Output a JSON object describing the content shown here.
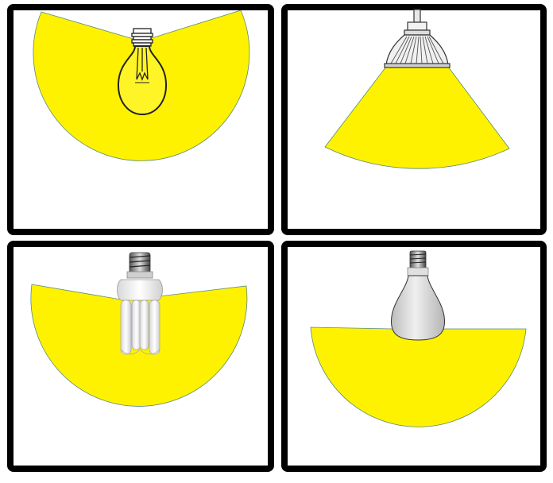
{
  "panels": [
    {
      "lamp": "incandescent-bulb-icon",
      "beam": "wide-beam"
    },
    {
      "lamp": "reflector-spotlight-icon",
      "beam": "narrow-beam"
    },
    {
      "lamp": "compact-fluorescent-bulb-icon",
      "beam": "wide-beam"
    },
    {
      "lamp": "reflector-bulb-icon",
      "beam": "half-beam"
    }
  ],
  "colors": {
    "light": "#fff200",
    "light_edge": "#5a8a7a",
    "frame": "#000000",
    "background": "#ffffff",
    "glass": "#ececec",
    "metal": "#9a9a9a",
    "reflector": "#d6d6d6"
  }
}
